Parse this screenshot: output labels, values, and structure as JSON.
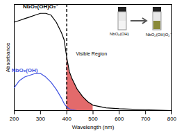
{
  "chart_data": {
    "type": "line",
    "x_label": "Wavelength (nm)",
    "y_label": "Absorbance",
    "x": [
      200,
      220,
      240,
      260,
      280,
      300,
      320,
      340,
      360,
      380,
      390,
      400,
      410,
      420,
      440,
      460,
      480,
      500,
      550,
      600,
      700,
      800
    ],
    "series": [
      {
        "name": "NbO₂(OH)O₂⁻",
        "color": "#000000",
        "values": [
          0.5,
          0.51,
          0.52,
          0.53,
          0.54,
          0.55,
          0.55,
          0.54,
          0.5,
          0.44,
          0.4,
          0.3,
          0.22,
          0.18,
          0.12,
          0.08,
          0.05,
          0.03,
          0.015,
          0.01,
          0.005,
          0
        ]
      },
      {
        "name": "NbO₂(OH)",
        "color": "#3f51e0",
        "values": [
          0.13,
          0.17,
          0.19,
          0.2,
          0.21,
          0.21,
          0.19,
          0.16,
          0.12,
          0.07,
          0.04,
          0.02,
          0.01,
          0.005,
          0,
          0,
          0,
          0,
          0,
          0,
          0,
          0
        ]
      }
    ],
    "visible_region": {
      "label": "Visible Region",
      "from": 400,
      "to": 520,
      "color": "#d9383a",
      "line_style": "dashed"
    },
    "annotations": [
      "NbO₂(OH)",
      "NbO₂(OH)O₂⁻"
    ],
    "xlim": [
      200,
      800
    ],
    "xticks": [
      200,
      300,
      400,
      500,
      600,
      700,
      800
    ],
    "ylim": [
      0,
      0.6
    ],
    "yticks": [],
    "tick_labels": "x",
    "grid": false
  }
}
